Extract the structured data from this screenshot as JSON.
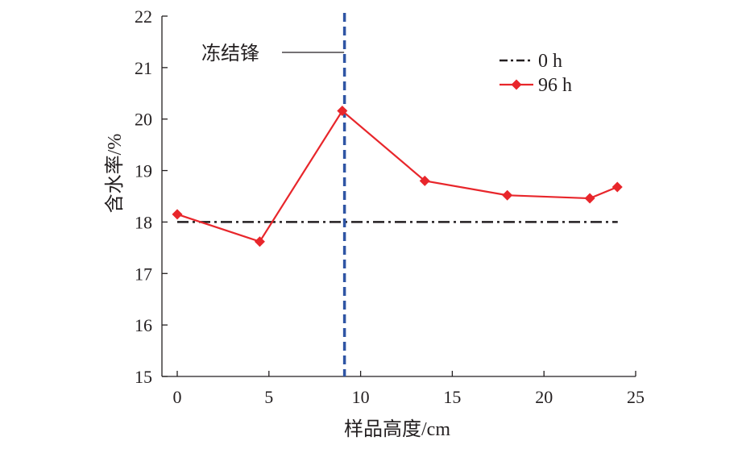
{
  "chart_data": {
    "type": "line",
    "title": "",
    "xlabel": "样品高度/cm",
    "ylabel": "含水率/%",
    "xlim": [
      0,
      25
    ],
    "ylim": [
      15,
      22
    ],
    "xticks": [
      0,
      5,
      10,
      15,
      20,
      25
    ],
    "yticks": [
      15,
      16,
      17,
      18,
      19,
      20,
      21,
      22
    ],
    "grid": false,
    "legend_position": "top-right",
    "series": [
      {
        "name": "0 h",
        "color": "#231f20",
        "style": "dash-dot",
        "x": [
          0,
          24
        ],
        "y": [
          18,
          18
        ]
      },
      {
        "name": "96 h",
        "color": "#e8262b",
        "style": "solid-diamond",
        "x": [
          0,
          4.5,
          9,
          13.5,
          18,
          22.5,
          24
        ],
        "y": [
          18.15,
          17.62,
          20.16,
          18.8,
          18.52,
          18.46,
          18.68
        ]
      }
    ],
    "annotations": [
      {
        "text": "冻结锋",
        "type": "vertical-dashed-line",
        "x": 9.1,
        "color": "#2f55a4"
      }
    ]
  }
}
